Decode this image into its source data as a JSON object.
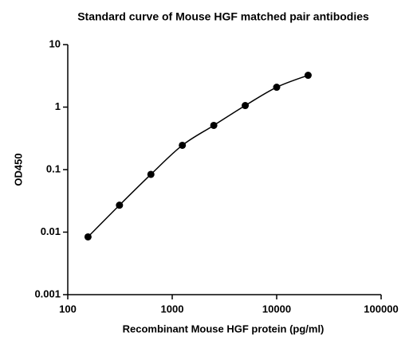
{
  "chart_data": {
    "type": "scatter",
    "title": "Standard curve of Mouse HGF matched pair antibodies",
    "x_label": "Recombinant Mouse HGF protein (pg/ml)",
    "y_label": "OD450",
    "x": [
      156.25,
      312.5,
      625,
      1250,
      2500,
      5000,
      10000,
      20000
    ],
    "values": [
      0.0084,
      0.027,
      0.084,
      0.245,
      0.51,
      1.06,
      2.08,
      3.23
    ],
    "color": "#000000",
    "xlog": true,
    "ylog": true,
    "xlim": [
      100,
      100000
    ],
    "ylim": [
      0.001,
      10
    ],
    "xticks": [
      100,
      1000,
      10000,
      100000
    ],
    "yticks": [
      0.001,
      0.01,
      0.1,
      1,
      10
    ]
  }
}
